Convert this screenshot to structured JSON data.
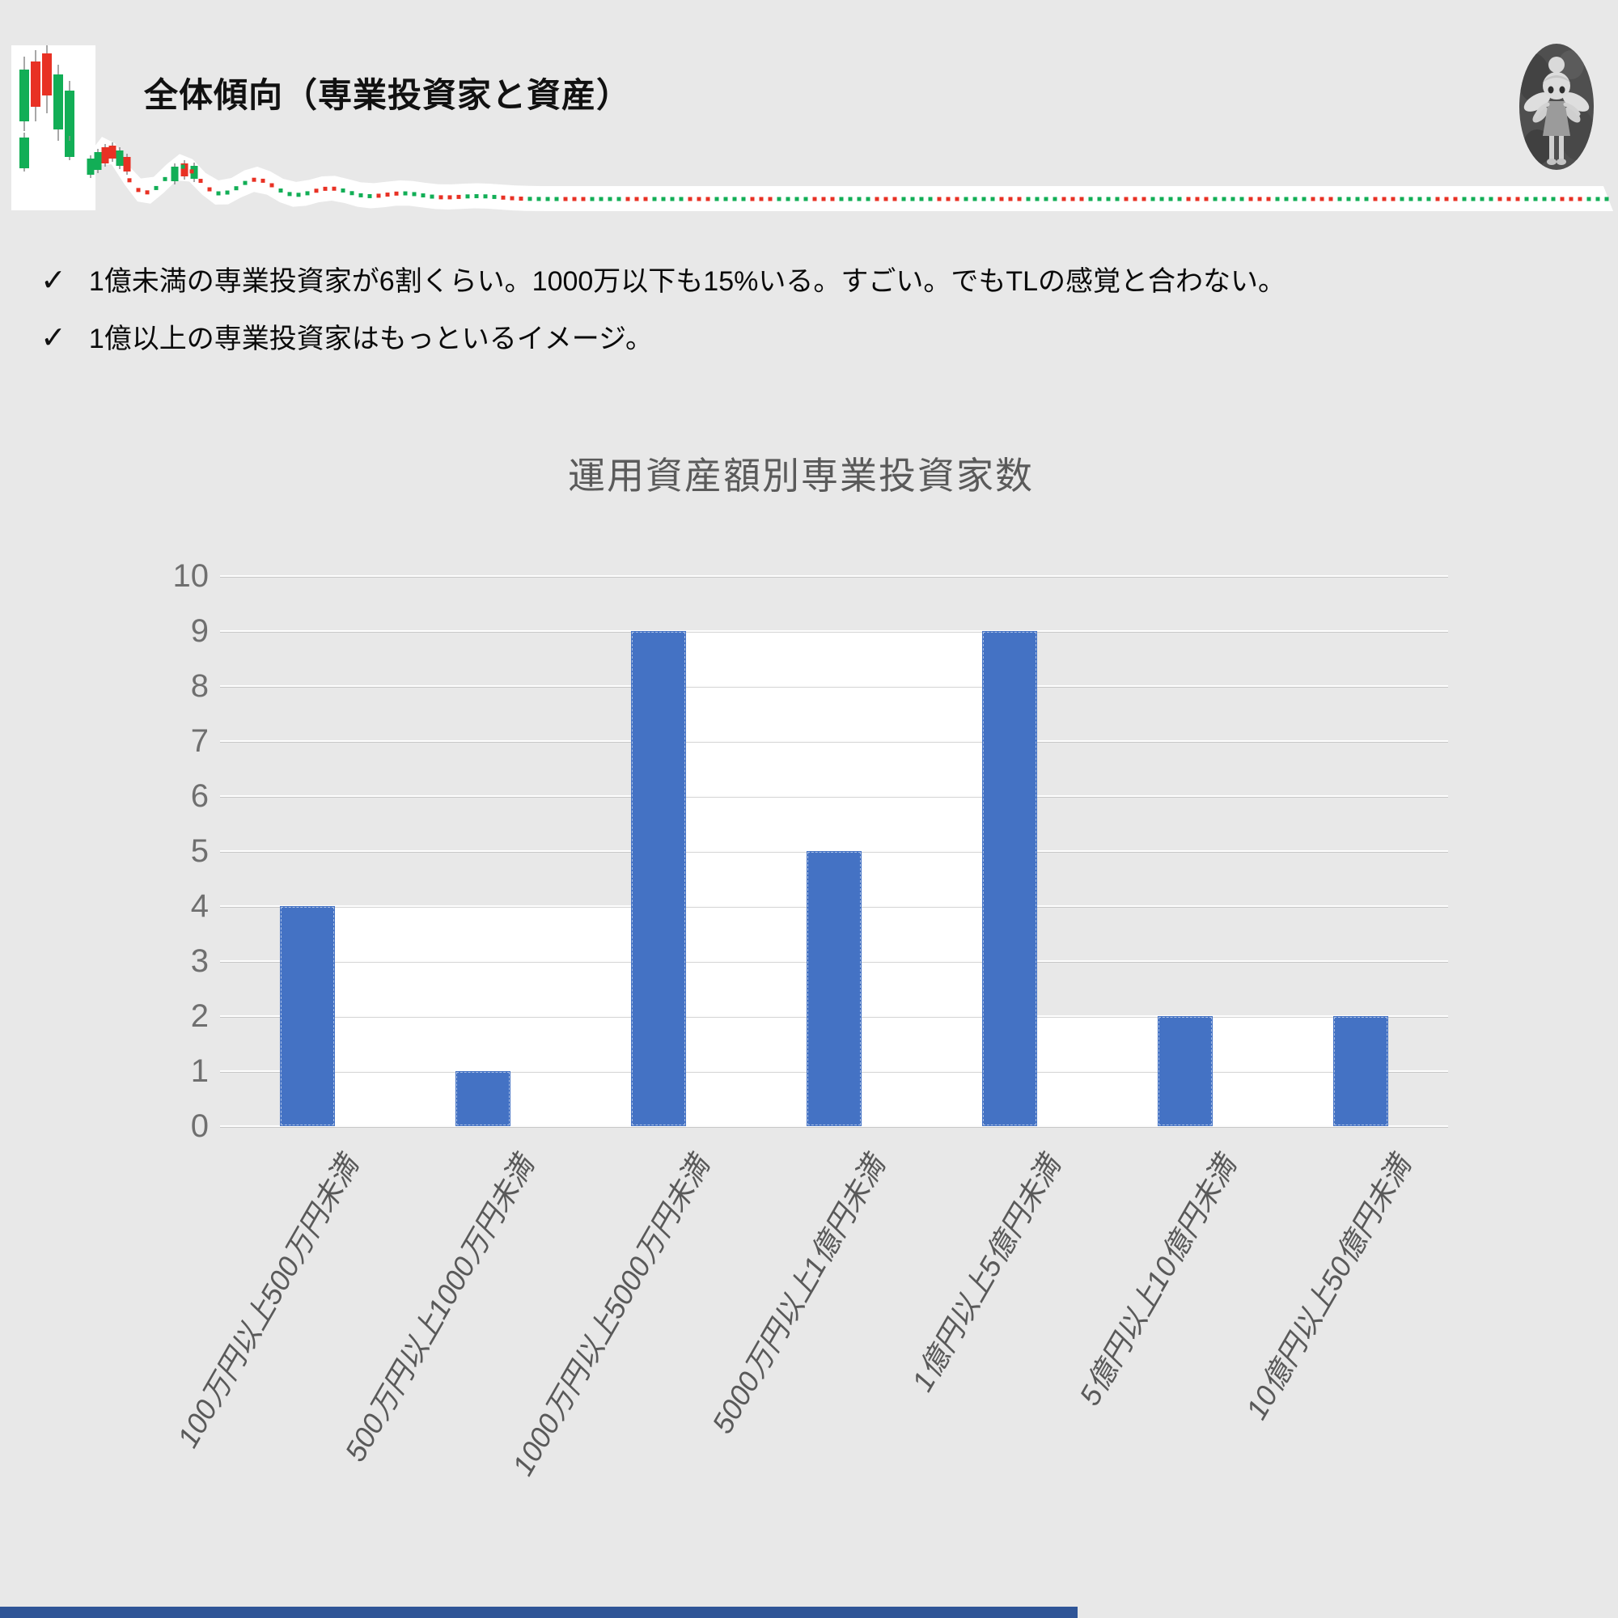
{
  "slide": {
    "background_color": "#e8e8e8",
    "footer_bar_color": "#2f5597"
  },
  "header": {
    "title": "全体傾向（専業投資家と資産）"
  },
  "notes": [
    {
      "marker": "✓",
      "text": "1億未満の専業投資家が6割くらい。1000万以下も15%いる。すごい。でもTLの感覚と合わない。"
    },
    {
      "marker": "✓",
      "text": "1億以上の専業投資家はもっといるイメージ。"
    }
  ],
  "decoration": {
    "kind": "declining-candlestick-sparkline",
    "up_color": "#12ae56",
    "down_color": "#e83124",
    "wick_color": "#8a8a8a",
    "background_color": "#ffffff"
  },
  "chart_data": {
    "type": "bar",
    "title": "運用資産額別専業投資家数",
    "categories": [
      "100万円以上500万円未満",
      "500万円以上1000万円未満",
      "1000万円以上5000万円未満",
      "5000万円以上1億円未満",
      "1億円以上5億円未満",
      "5億円以上10億円未満",
      "10億円以上50億円未満"
    ],
    "values": [
      4,
      1,
      9,
      5,
      9,
      2,
      2
    ],
    "ylim": [
      0,
      10
    ],
    "ytick_step": 1,
    "yticks": [
      0,
      1,
      2,
      3,
      4,
      5,
      6,
      7,
      8,
      9,
      10
    ],
    "xlabel": "",
    "ylabel": "",
    "grid": true,
    "legend": "none",
    "bar_color": "#4472c4",
    "title_color": "#5a5a5a",
    "tick_label_color": "#6f6f6f",
    "xtick_label_color": "#595959",
    "xtick_rotation_deg": 60,
    "xtick_style": "italic",
    "white_backdrop_segments": [
      {
        "from_bar": 0,
        "to_bar": 2,
        "level": 4
      },
      {
        "from_bar": 2,
        "to_bar": 4,
        "level": 9
      },
      {
        "from_bar": 4,
        "to_bar": 6,
        "level": 2
      }
    ]
  }
}
